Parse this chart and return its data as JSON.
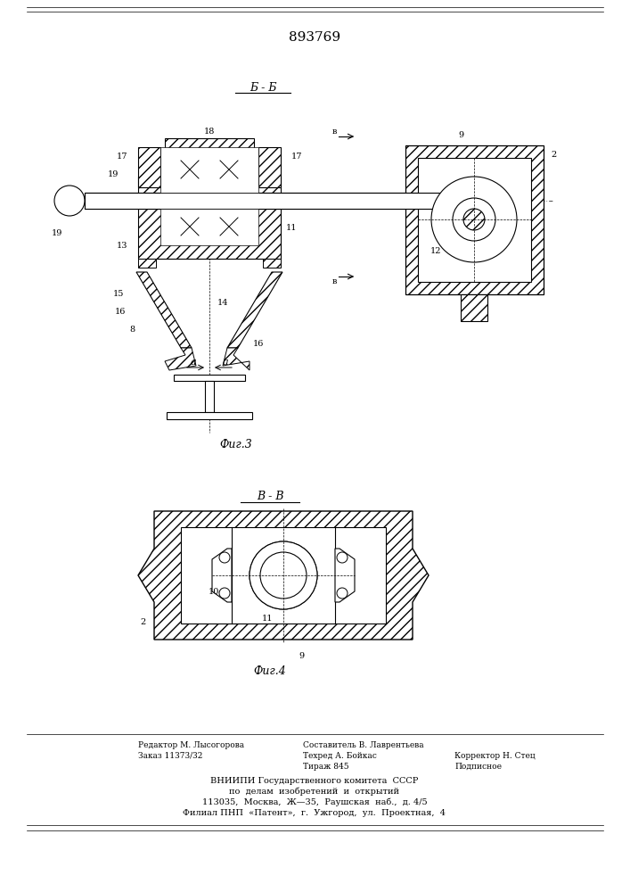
{
  "patent_number": "893769",
  "fig3_label": "Б - Б",
  "fig4_label": "В - В",
  "fig3_caption": "Фиг.3",
  "fig4_caption": "Фиг.4",
  "bg_color": "#ffffff",
  "line_color": "#000000"
}
